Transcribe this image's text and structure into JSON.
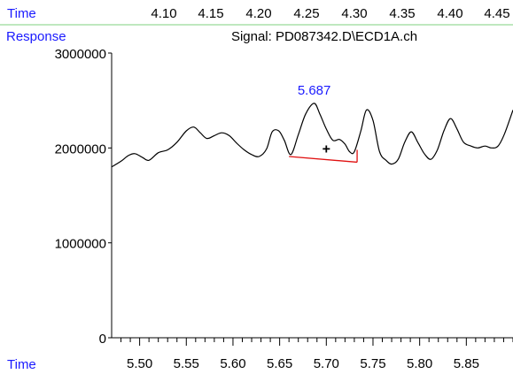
{
  "header": {
    "time_label": "Time",
    "response_label": "Response",
    "signal_title": "Signal: PD087342.D\\ECD1A.ch"
  },
  "footer": {
    "time_label": "Time"
  },
  "colors": {
    "axis_label": "#1a1aff",
    "peak_label": "#1a1aff",
    "trace": "#000000",
    "baseline": "#e01010",
    "top_rule": "#7fd17f"
  },
  "chart_data": {
    "type": "line",
    "title": "Signal: PD087342.D\\ECD1A.ch",
    "xlabel": "Time",
    "ylabel": "Response",
    "xlim": [
      5.47,
      5.9
    ],
    "ylim": [
      0,
      3000000
    ],
    "x_ticks": [
      5.5,
      5.55,
      5.6,
      5.65,
      5.7,
      5.75,
      5.8,
      5.85
    ],
    "x_tick_labels": [
      "5.50",
      "5.55",
      "5.60",
      "5.65",
      "5.70",
      "5.75",
      "5.80",
      "5.85"
    ],
    "y_ticks": [
      0,
      1000000,
      2000000,
      3000000
    ],
    "y_tick_labels": [
      "0",
      "1000000",
      "2000000",
      "3000000"
    ],
    "top_axis_ticks": [
      4.1,
      4.15,
      4.2,
      4.25,
      4.3,
      4.35,
      4.4,
      4.45
    ],
    "top_axis_labels": [
      "4.10",
      "4.15",
      "4.20",
      "4.25",
      "4.30",
      "4.35",
      "4.40",
      "4.45"
    ],
    "series": [
      {
        "x": [
          5.47,
          5.48,
          5.488,
          5.495,
          5.503,
          5.51,
          5.52,
          5.53,
          5.54,
          5.55,
          5.558,
          5.565,
          5.572,
          5.58,
          5.588,
          5.596,
          5.604,
          5.612,
          5.62,
          5.628,
          5.636,
          5.642,
          5.649,
          5.655,
          5.662,
          5.67,
          5.678,
          5.687,
          5.693,
          5.7,
          5.707,
          5.714,
          5.72,
          5.725,
          5.73,
          5.737,
          5.743,
          5.75,
          5.757,
          5.764,
          5.77,
          5.777,
          5.784,
          5.791,
          5.798,
          5.805,
          5.812,
          5.819,
          5.826,
          5.833,
          5.84,
          5.847,
          5.855,
          5.862,
          5.87,
          5.877,
          5.884,
          5.891,
          5.9
        ],
        "y": [
          1800000,
          1860000,
          1920000,
          1940000,
          1900000,
          1870000,
          1950000,
          1980000,
          2060000,
          2180000,
          2220000,
          2160000,
          2100000,
          2130000,
          2160000,
          2130000,
          2050000,
          1980000,
          1930000,
          1910000,
          1990000,
          2170000,
          2180000,
          2080000,
          1930000,
          2140000,
          2360000,
          2470000,
          2360000,
          2200000,
          2080000,
          2090000,
          2040000,
          1960000,
          1960000,
          2180000,
          2400000,
          2290000,
          1960000,
          1870000,
          1830000,
          1880000,
          2060000,
          2170000,
          2060000,
          1940000,
          1880000,
          1980000,
          2180000,
          2310000,
          2200000,
          2060000,
          2020000,
          2000000,
          2020000,
          2000000,
          2020000,
          2150000,
          2400000
        ]
      }
    ],
    "peaks": [
      {
        "label": "5.687",
        "apex_x": 5.687,
        "apex_y": 2470000,
        "baseline_start": [
          5.66,
          1910000
        ],
        "baseline_end": [
          5.733,
          1850000
        ],
        "centroid_marker": "+",
        "centroid": [
          5.7,
          1990000
        ]
      }
    ]
  }
}
